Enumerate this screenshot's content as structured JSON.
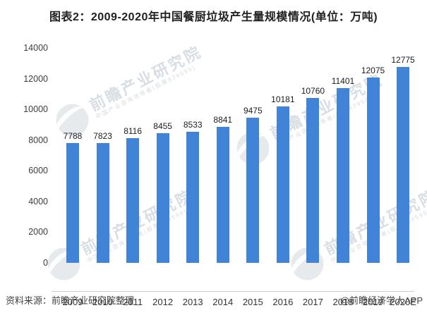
{
  "title": "图表2：2009-2020年中国餐厨垃圾产生量规模情况(单位：万吨)",
  "chart_data": {
    "type": "bar",
    "title": "图表2：2009-2020年中国餐厨垃圾产生量规模情况(单位：万吨)",
    "categories": [
      "2009",
      "2010",
      "2011",
      "2012",
      "2013",
      "2014",
      "2015",
      "2016",
      "2017",
      "2018",
      "2019",
      "2020E"
    ],
    "values": [
      7788,
      7823,
      8116,
      8455,
      8533,
      8841,
      9475,
      10181,
      10760,
      11401,
      12075,
      12775
    ],
    "xlabel": "",
    "ylabel": "",
    "ylim": [
      0,
      14000
    ],
    "yticks": [
      0,
      2000,
      4000,
      6000,
      8000,
      10000,
      12000,
      14000
    ],
    "bar_color": "#4183d6",
    "grid": false,
    "legend": null,
    "value_labels": true,
    "unit": "万吨"
  },
  "watermark": {
    "main": "前瞻产业研究院",
    "sub": "中国产业咨询领导者(股票839599)"
  },
  "footer": {
    "source": "资料来源：前瞻产业研究院整理",
    "credit": "@前瞻经济学人APP"
  }
}
